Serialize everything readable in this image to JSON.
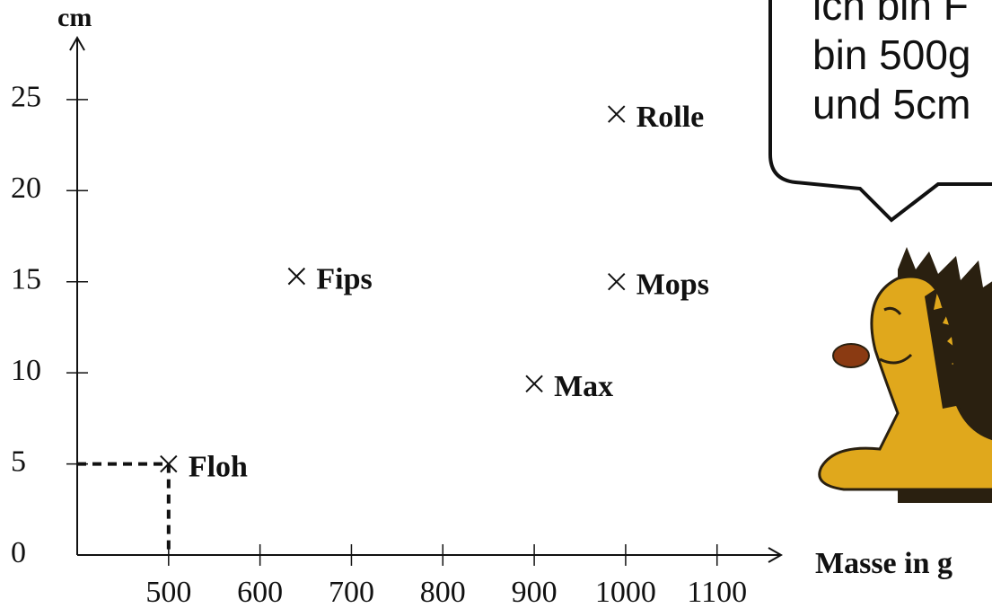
{
  "chart_data": {
    "type": "scatter",
    "x_label": "Masse in g",
    "y_label": "cm",
    "xlim": [
      400,
      1170
    ],
    "ylim": [
      0,
      28
    ],
    "xticks": [
      500,
      600,
      700,
      800,
      900,
      1000,
      1100
    ],
    "yticks": [
      0,
      5,
      10,
      15,
      20,
      25
    ],
    "points": [
      {
        "name": "Floh",
        "x": 500,
        "y": 5
      },
      {
        "name": "Fips",
        "x": 640,
        "y": 15.3
      },
      {
        "name": "Max",
        "x": 900,
        "y": 9.4
      },
      {
        "name": "Mops",
        "x": 990,
        "y": 15
      },
      {
        "name": "Rolle",
        "x": 990,
        "y": 24.2
      }
    ],
    "highlight_point": 0,
    "color": "#111111",
    "speech_bubble": [
      "ich bin F",
      "bin 500g",
      "und 5cm"
    ]
  }
}
